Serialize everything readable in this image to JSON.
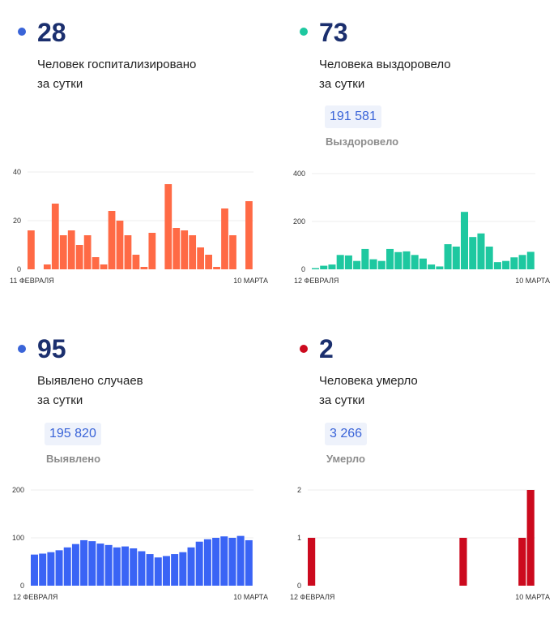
{
  "cards": [
    {
      "key": "hosp",
      "value": "28",
      "caption_line1": "Человек госпитализировано",
      "caption_line2": "за сутки",
      "total": "",
      "total_label": "",
      "color": "#ff6a45",
      "dot_color": "#3a64d8"
    },
    {
      "key": "recovered",
      "value": "73",
      "caption_line1": "Человека выздоровело",
      "caption_line2": "за сутки",
      "total": "191 581",
      "total_label": "Выздоровело",
      "color": "#1ec8a0",
      "dot_color": "#1ec8a0"
    },
    {
      "key": "cases",
      "value": "95",
      "caption_line1": "Выявлено случаев",
      "caption_line2": "за сутки",
      "total": "195 820",
      "total_label": "Выявлено",
      "color": "#3a64f5",
      "dot_color": "#3a64d8"
    },
    {
      "key": "deaths",
      "value": "2",
      "caption_line1": "Человека умерло",
      "caption_line2": "за сутки",
      "total": "3 266",
      "total_label": "Умерло",
      "color": "#cc0a1e",
      "dot_color": "#cc0a1e"
    }
  ],
  "chart_data": [
    {
      "type": "bar",
      "series_key": "hosp",
      "x_start_label": "11 ФЕВРАЛЯ",
      "x_end_label": "10 МАРТА",
      "yticks": [
        0,
        20,
        40
      ],
      "ylim": [
        0,
        40
      ],
      "values": [
        16,
        0,
        2,
        27,
        14,
        16,
        10,
        14,
        5,
        2,
        24,
        20,
        14,
        6,
        1,
        15,
        0,
        35,
        17,
        16,
        14,
        9,
        6,
        1,
        25,
        14,
        0,
        28
      ],
      "grid": true
    },
    {
      "type": "bar",
      "series_key": "recovered",
      "x_start_label": "12 ФЕВРАЛЯ",
      "x_end_label": "10 МАРТА",
      "yticks": [
        0,
        200,
        400
      ],
      "ylim": [
        0,
        400
      ],
      "values": [
        5,
        15,
        20,
        60,
        58,
        35,
        85,
        42,
        35,
        85,
        72,
        75,
        60,
        45,
        20,
        12,
        105,
        95,
        240,
        135,
        150,
        95,
        30,
        35,
        50,
        60,
        73
      ],
      "grid": true
    },
    {
      "type": "bar",
      "series_key": "cases",
      "x_start_label": "12 ФЕВРАЛЯ",
      "x_end_label": "10 МАРТА",
      "yticks": [
        0,
        100,
        200
      ],
      "ylim": [
        0,
        200
      ],
      "values": [
        65,
        67,
        70,
        74,
        80,
        87,
        95,
        93,
        88,
        85,
        80,
        82,
        78,
        72,
        66,
        59,
        62,
        66,
        70,
        80,
        92,
        97,
        100,
        103,
        100,
        104,
        95
      ],
      "grid": true
    },
    {
      "type": "bar",
      "series_key": "deaths",
      "x_start_label": "12 ФЕВРАЛЯ",
      "x_end_label": "10 МАРТА",
      "yticks": [
        0,
        1,
        2
      ],
      "ylim": [
        0,
        2
      ],
      "values": [
        1,
        0,
        0,
        0,
        0,
        0,
        0,
        0,
        0,
        0,
        0,
        0,
        0,
        0,
        0,
        0,
        0,
        0,
        1,
        0,
        0,
        0,
        0,
        0,
        0,
        1,
        2
      ],
      "grid": true
    }
  ]
}
